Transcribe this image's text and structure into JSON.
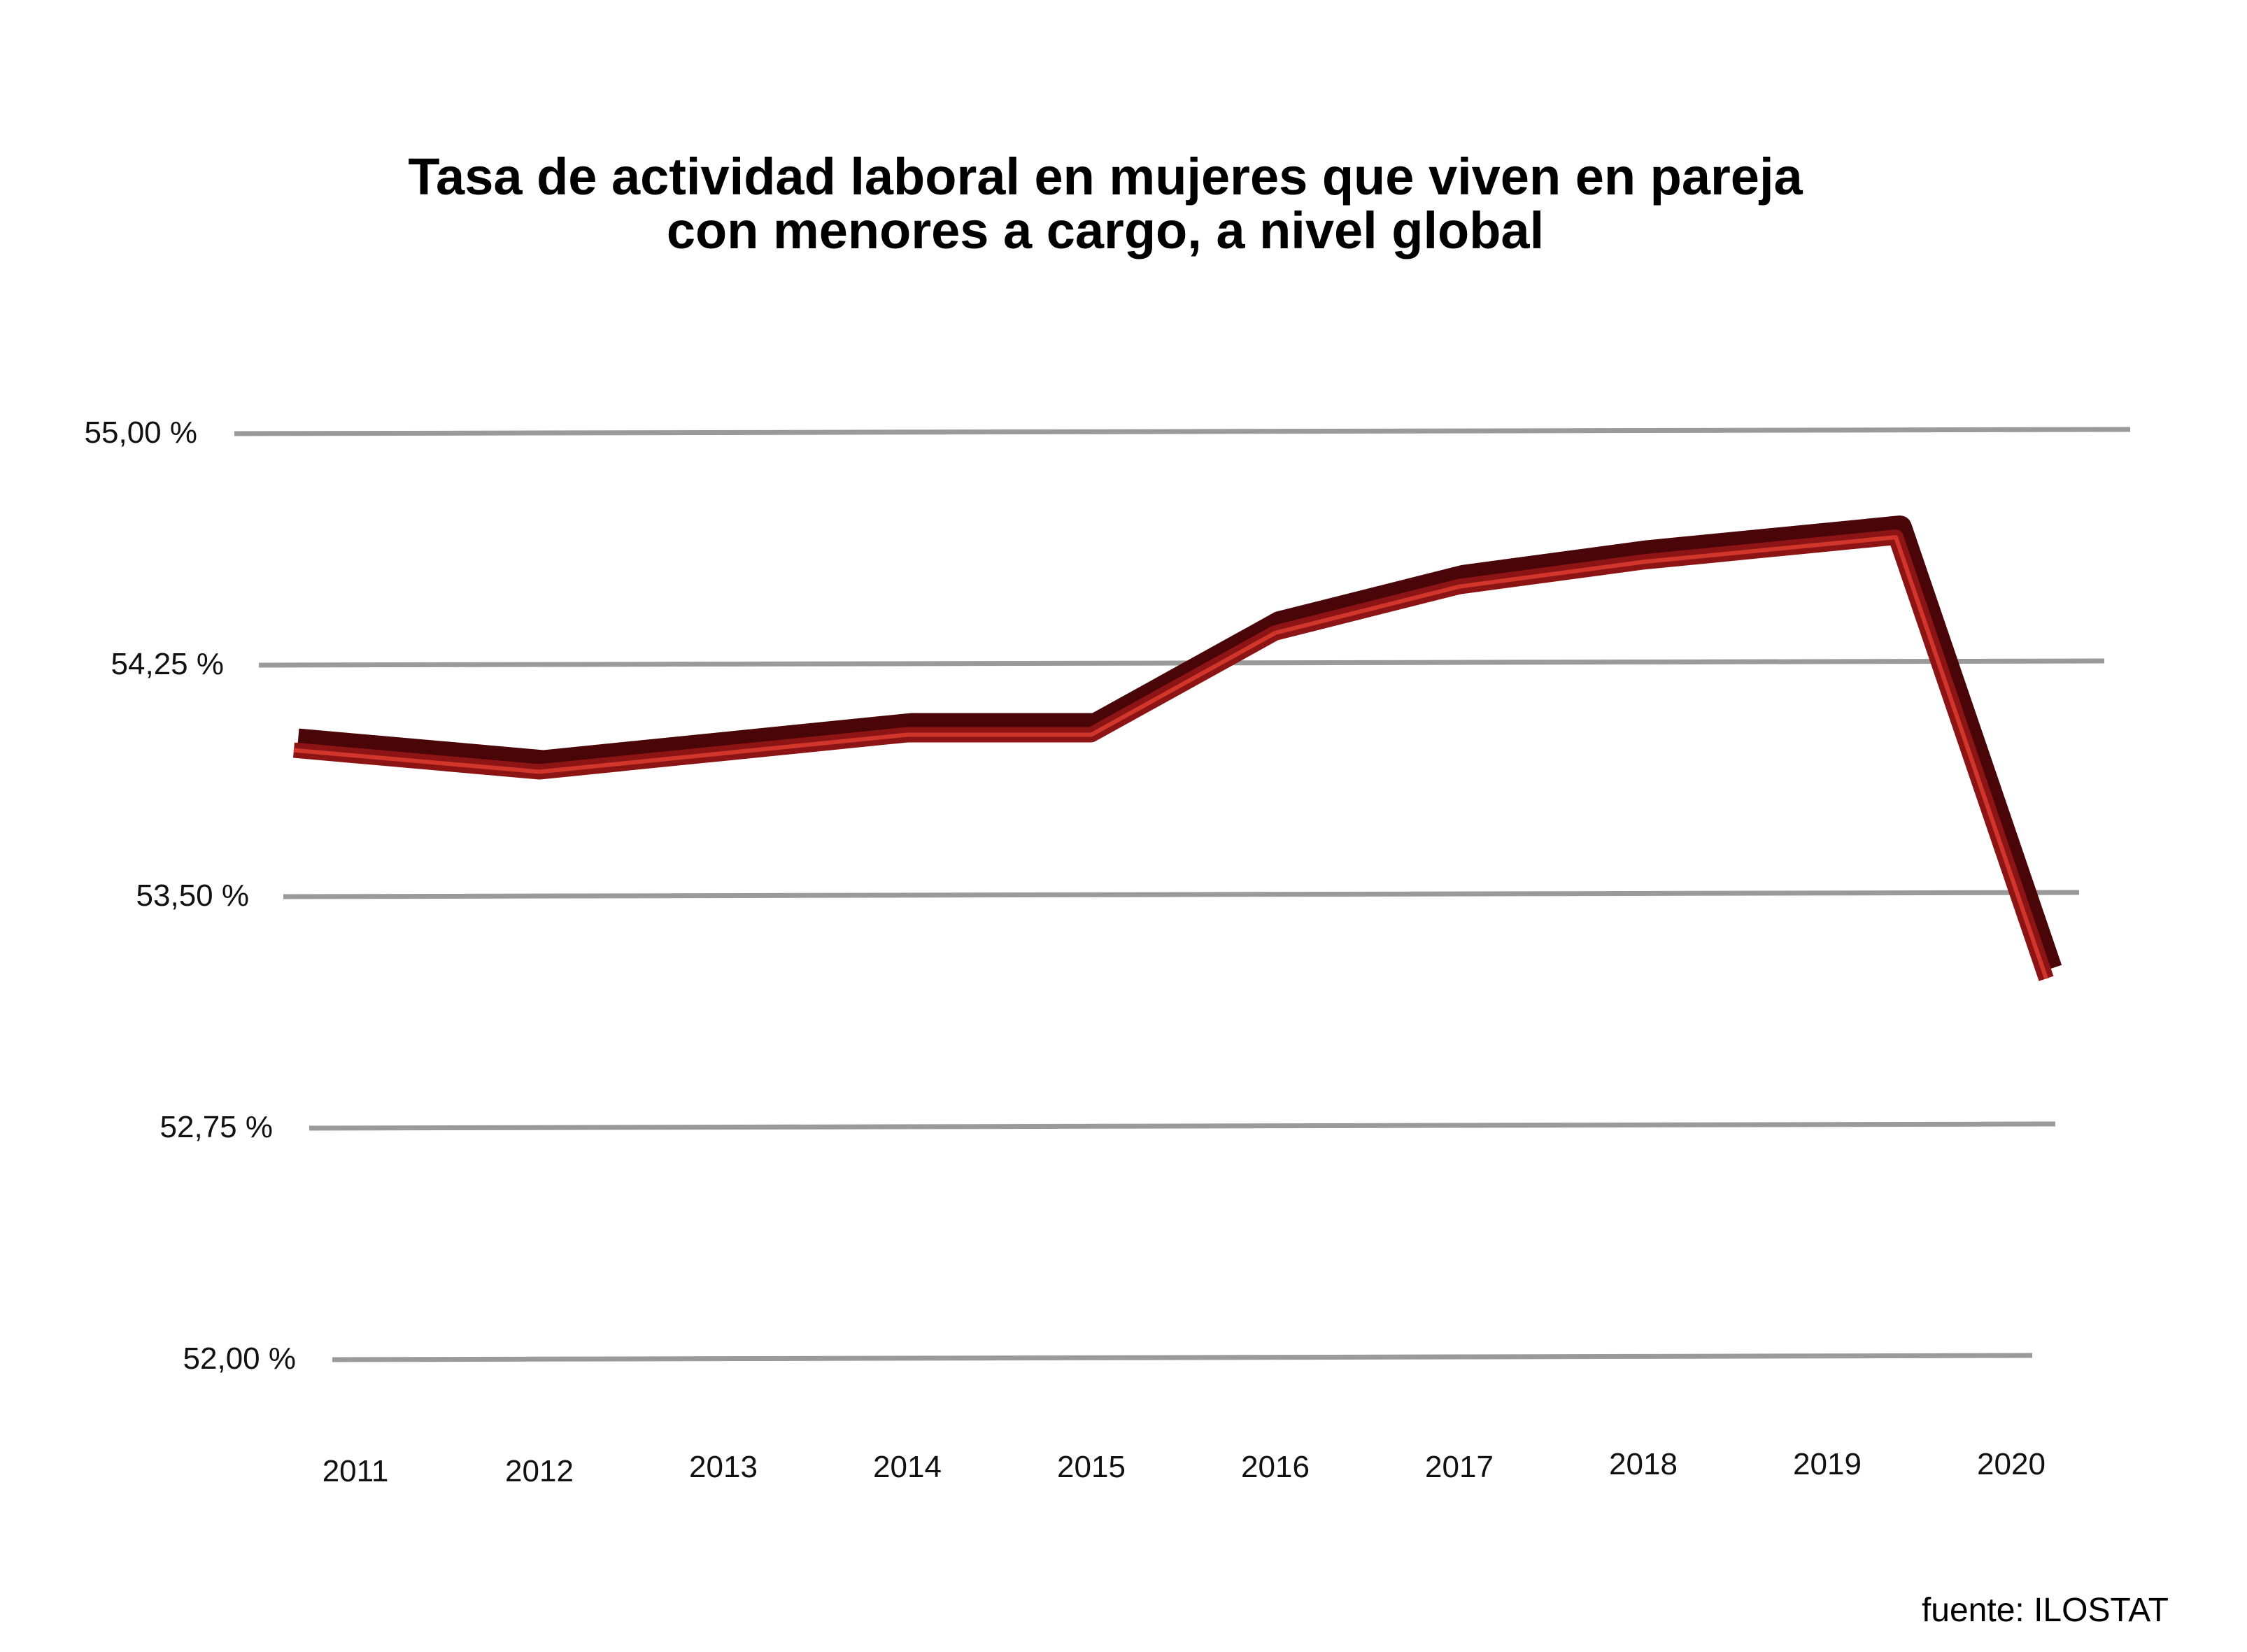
{
  "chart_data": {
    "type": "line",
    "title_lines": [
      "Tasa de actividad laboral en mujeres que viven en pareja",
      "con menores a cargo, a nivel global"
    ],
    "categories": [
      "2011",
      "2012",
      "2013",
      "2014",
      "2015",
      "2016",
      "2017",
      "2018",
      "2019",
      "2020"
    ],
    "values": [
      53.97,
      53.9,
      53.96,
      54.02,
      54.02,
      54.35,
      54.5,
      54.58,
      54.66,
      53.23
    ],
    "y_ticks": [
      {
        "value": 55.0,
        "label": "55,00 %"
      },
      {
        "value": 54.25,
        "label": "54,25 %"
      },
      {
        "value": 53.5,
        "label": "53,50 %"
      },
      {
        "value": 52.75,
        "label": "52,75 %"
      },
      {
        "value": 52.0,
        "label": "52,00 %"
      }
    ],
    "ylim": [
      52.0,
      55.0
    ],
    "grid": true,
    "legend": "none",
    "line_color": "#8c1414",
    "line_dark_color": "#4a0508",
    "line_highlight_color": "#d2362a",
    "grid_color": "#9a9a9a",
    "source": "fuente: ILOSTAT"
  }
}
